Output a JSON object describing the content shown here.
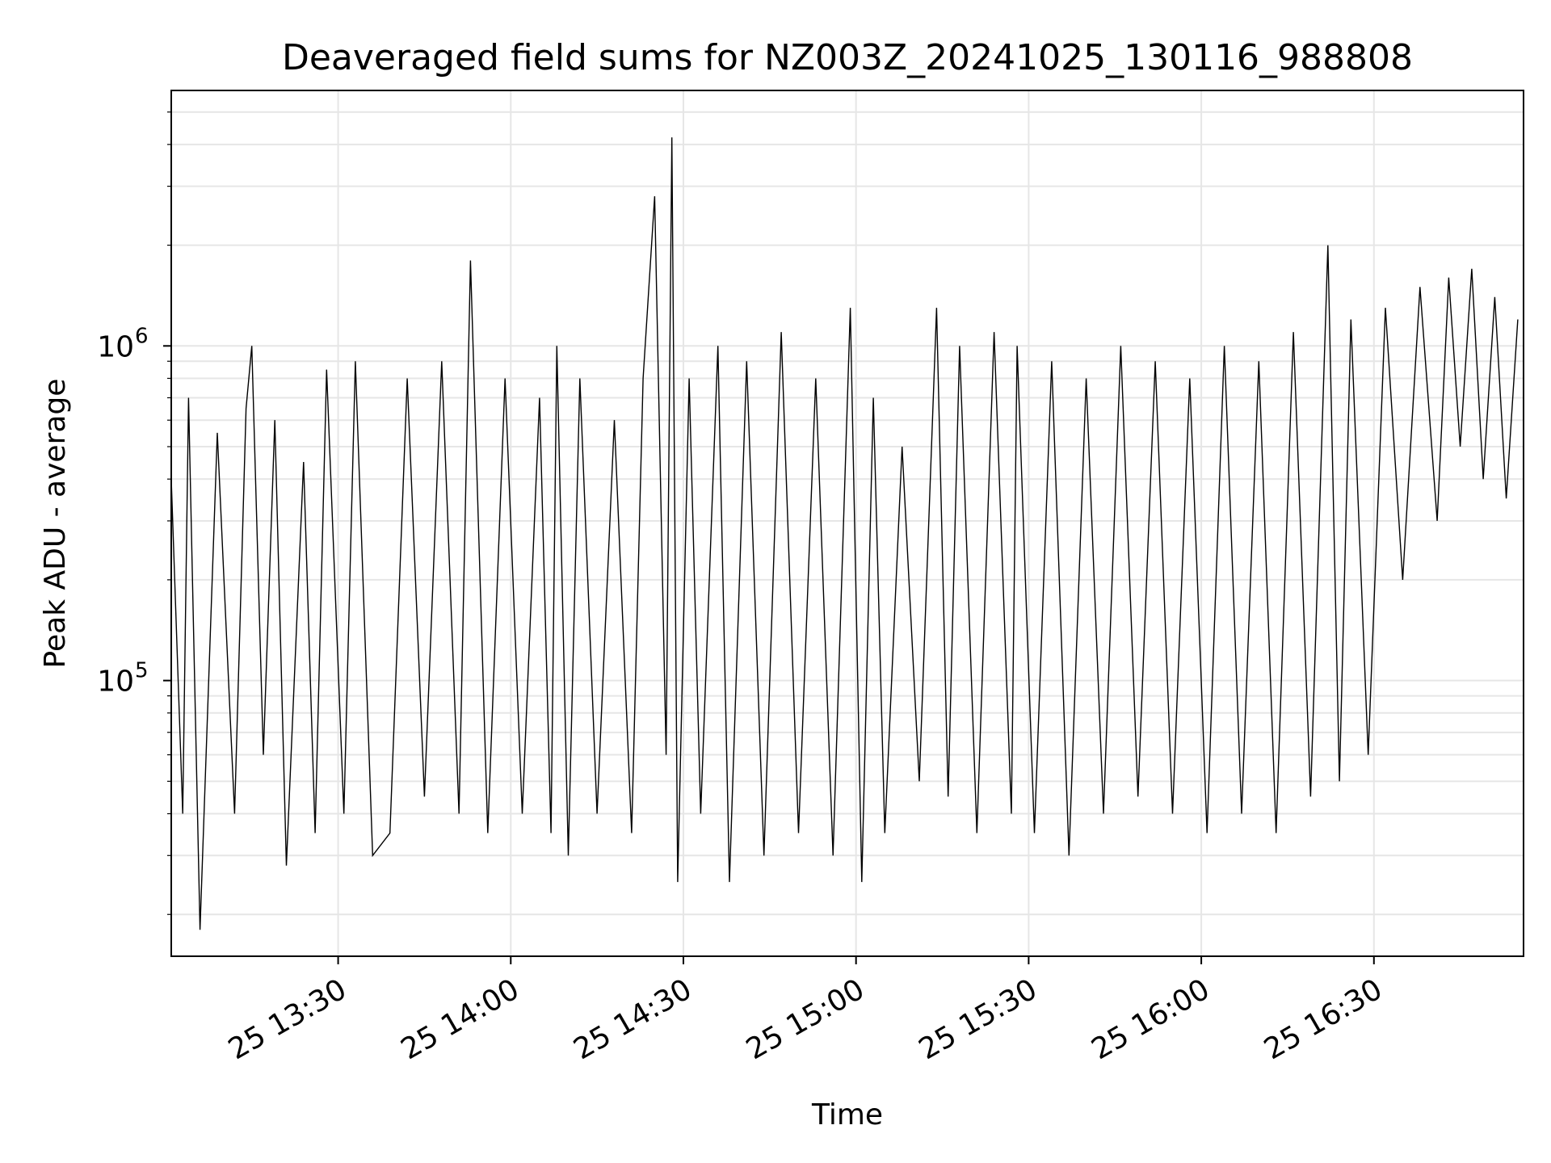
{
  "chart_data": {
    "type": "line",
    "title": "Deaveraged field sums for NZ003Z_20241025_130116_988808",
    "xlabel": "Time",
    "ylabel": "Peak ADU - average",
    "y_scale": "log",
    "grid": true,
    "line_color": "#000000",
    "grid_color": "#e6e6e6",
    "x_axis": {
      "type": "time",
      "range": [
        "2024-10-25 13:01",
        "2024-10-25 16:56"
      ],
      "tick_labels": [
        "25 13:30",
        "25 14:00",
        "25 14:30",
        "25 15:00",
        "25 15:30",
        "25 16:00",
        "25 16:30"
      ],
      "tick_values": [
        "2024-10-25 13:30",
        "2024-10-25 14:00",
        "2024-10-25 14:30",
        "2024-10-25 15:00",
        "2024-10-25 15:30",
        "2024-10-25 16:00",
        "2024-10-25 16:30"
      ]
    },
    "y_axis": {
      "range": [
        15000,
        5800000
      ],
      "major_ticks": [
        {
          "value": 100000,
          "base": "10",
          "exp": "5"
        },
        {
          "value": 1000000,
          "base": "10",
          "exp": "6"
        }
      ]
    },
    "series": [
      {
        "x": [
          "2024-10-25 13:01",
          "2024-10-25 13:03",
          "2024-10-25 13:04",
          "2024-10-25 13:06",
          "2024-10-25 13:09",
          "2024-10-25 13:12",
          "2024-10-25 13:14",
          "2024-10-25 13:15",
          "2024-10-25 13:17",
          "2024-10-25 13:19",
          "2024-10-25 13:21",
          "2024-10-25 13:24",
          "2024-10-25 13:26",
          "2024-10-25 13:28",
          "2024-10-25 13:31",
          "2024-10-25 13:33",
          "2024-10-25 13:36",
          "2024-10-25 13:39",
          "2024-10-25 13:42",
          "2024-10-25 13:45",
          "2024-10-25 13:48",
          "2024-10-25 13:51",
          "2024-10-25 13:53",
          "2024-10-25 13:56",
          "2024-10-25 13:59",
          "2024-10-25 14:02",
          "2024-10-25 14:05",
          "2024-10-25 14:07",
          "2024-10-25 14:08",
          "2024-10-25 14:10",
          "2024-10-25 14:12",
          "2024-10-25 14:15",
          "2024-10-25 14:18",
          "2024-10-25 14:21",
          "2024-10-25 14:23",
          "2024-10-25 14:25",
          "2024-10-25 14:27",
          "2024-10-25 14:28",
          "2024-10-25 14:29",
          "2024-10-25 14:31",
          "2024-10-25 14:33",
          "2024-10-25 14:36",
          "2024-10-25 14:38",
          "2024-10-25 14:41",
          "2024-10-25 14:44",
          "2024-10-25 14:47",
          "2024-10-25 14:50",
          "2024-10-25 14:53",
          "2024-10-25 14:56",
          "2024-10-25 14:59",
          "2024-10-25 15:01",
          "2024-10-25 15:03",
          "2024-10-25 15:05",
          "2024-10-25 15:08",
          "2024-10-25 15:11",
          "2024-10-25 15:14",
          "2024-10-25 15:16",
          "2024-10-25 15:18",
          "2024-10-25 15:21",
          "2024-10-25 15:24",
          "2024-10-25 15:27",
          "2024-10-25 15:28",
          "2024-10-25 15:31",
          "2024-10-25 15:34",
          "2024-10-25 15:37",
          "2024-10-25 15:40",
          "2024-10-25 15:43",
          "2024-10-25 15:46",
          "2024-10-25 15:49",
          "2024-10-25 15:52",
          "2024-10-25 15:55",
          "2024-10-25 15:58",
          "2024-10-25 16:01",
          "2024-10-25 16:04",
          "2024-10-25 16:07",
          "2024-10-25 16:10",
          "2024-10-25 16:13",
          "2024-10-25 16:16",
          "2024-10-25 16:19",
          "2024-10-25 16:22",
          "2024-10-25 16:24",
          "2024-10-25 16:26",
          "2024-10-25 16:29",
          "2024-10-25 16:32",
          "2024-10-25 16:35",
          "2024-10-25 16:38",
          "2024-10-25 16:41",
          "2024-10-25 16:43",
          "2024-10-25 16:45",
          "2024-10-25 16:47",
          "2024-10-25 16:49",
          "2024-10-25 16:51",
          "2024-10-25 16:53",
          "2024-10-25 16:55"
        ],
        "values": [
          400000,
          40000,
          700000,
          18000,
          550000,
          40000,
          650000,
          1000000,
          60000,
          600000,
          28000,
          450000,
          35000,
          850000,
          40000,
          900000,
          30000,
          35000,
          800000,
          45000,
          900000,
          40000,
          1800000,
          35000,
          800000,
          40000,
          700000,
          35000,
          1000000,
          30000,
          800000,
          40000,
          600000,
          35000,
          800000,
          2800000,
          60000,
          4200000,
          25000,
          800000,
          40000,
          1000000,
          25000,
          900000,
          30000,
          1100000,
          35000,
          800000,
          30000,
          1300000,
          25000,
          700000,
          35000,
          500000,
          50000,
          1300000,
          45000,
          1000000,
          35000,
          1100000,
          40000,
          1000000,
          35000,
          900000,
          30000,
          800000,
          40000,
          1000000,
          45000,
          900000,
          40000,
          800000,
          35000,
          1000000,
          40000,
          900000,
          35000,
          1100000,
          45000,
          2000000,
          50000,
          1200000,
          60000,
          1300000,
          200000,
          1500000,
          300000,
          1600000,
          500000,
          1700000,
          400000,
          1400000,
          350000,
          1200000
        ]
      }
    ]
  }
}
